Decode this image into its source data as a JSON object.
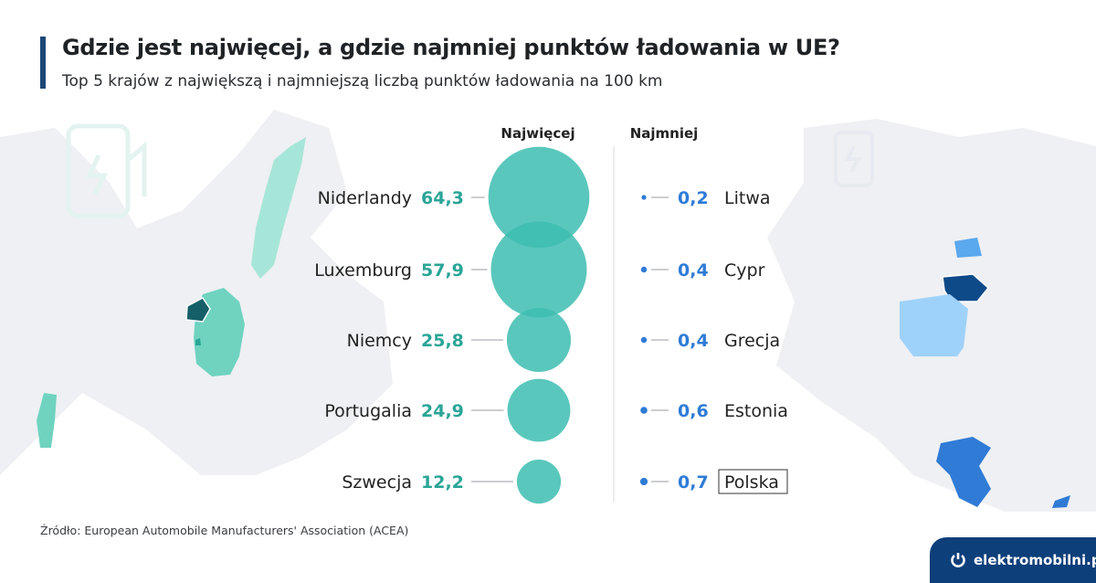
{
  "header": {
    "title": "Gdzie jest najwięcej, a gdzie najmniej punktów ładowania w UE?",
    "subtitle": "Top 5 krajów z największą i najmniejszą liczbą punktów ładowania na 100 km"
  },
  "chart_data": {
    "type": "bubble",
    "columns": [
      "Najwięcej",
      "Najmniej"
    ],
    "most": {
      "categories": [
        "Niderlandy",
        "Luxemburg",
        "Niemcy",
        "Portugalia",
        "Szwecja"
      ],
      "values": [
        64.3,
        57.9,
        25.8,
        24.9,
        12.2
      ],
      "labels": [
        "64,3",
        "57,9",
        "25,8",
        "24,9",
        "12,2"
      ]
    },
    "least": {
      "categories": [
        "Litwa",
        "Cypr",
        "Grecja",
        "Estonia",
        "Polska"
      ],
      "values": [
        0.2,
        0.4,
        0.4,
        0.6,
        0.7
      ],
      "labels": [
        "0,2",
        "0,4",
        "0,4",
        "0,6",
        "0,7"
      ],
      "highlighted": "Polska"
    }
  },
  "colors": {
    "most": "#3dbdb0",
    "most_text": "#2aa597",
    "least": "#2f7bd6",
    "least_text": "#2f7bd6",
    "title_bar": "#1b4778",
    "logo_bg": "#0d3f7a"
  },
  "footer": {
    "source": "Źródło: European Automobile Manufacturers' Association (ACEA)",
    "logo": "elektromobilni.pl",
    "logo_icon": "power-icon"
  }
}
